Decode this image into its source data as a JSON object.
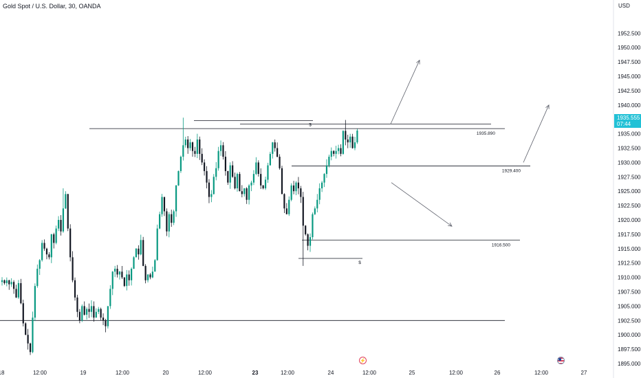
{
  "header": {
    "title": "Gold Spot / U.S. Dollar, 30, OANDA",
    "currency": "USD"
  },
  "price_tag": {
    "price": "1935.555",
    "countdown": "07:44",
    "color": "#22c1d6"
  },
  "colors": {
    "up": "#089981",
    "down": "#131722",
    "line": "#131722",
    "axis_text": "#131722",
    "drawing": "#5d606b"
  },
  "events": [
    {
      "icon": "flash-event-icon",
      "x": "23 12:00"
    },
    {
      "icon": "us-flag-icon",
      "x": "26 12:00"
    }
  ],
  "chart_data": {
    "type": "candlestick",
    "title": "Gold Spot / U.S. Dollar, 30, OANDA",
    "ylabel": "USD",
    "ylim": [
      1895,
      1955
    ],
    "y_ticks": [
      1895,
      1897.5,
      1900,
      1902.5,
      1905,
      1907.5,
      1910,
      1912.5,
      1915,
      1917.5,
      1920,
      1922.5,
      1925,
      1927.5,
      1930,
      1932.5,
      1935,
      1937.5,
      1940,
      1942.5,
      1945,
      1947.5,
      1950,
      1952.5
    ],
    "y_tick_labels": [
      "1895.000",
      "1897.500",
      "1900.000",
      "1902.500",
      "1905.000",
      "1907.500",
      "1910.000",
      "1912.500",
      "1915.000",
      "1917.500",
      "1920.000",
      "1922.500",
      "1925.000",
      "1927.500",
      "1930.000",
      "1932.500",
      "1935.000",
      "1937.500",
      "1940.000",
      "1942.500",
      "1945.000",
      "1947.500",
      "1950.000",
      "1952.500"
    ],
    "x_ticks": [
      {
        "label": "18",
        "bold": false
      },
      {
        "label": "12:00",
        "bold": false
      },
      {
        "label": "19",
        "bold": false
      },
      {
        "label": "12:00",
        "bold": false
      },
      {
        "label": "20",
        "bold": false
      },
      {
        "label": "12:00",
        "bold": false
      },
      {
        "label": "23",
        "bold": true
      },
      {
        "label": "12:00",
        "bold": false
      },
      {
        "label": "24",
        "bold": false
      },
      {
        "label": "12:00",
        "bold": false
      },
      {
        "label": "25",
        "bold": false
      },
      {
        "label": "12:00",
        "bold": false
      },
      {
        "label": "26",
        "bold": false
      },
      {
        "label": "12:00",
        "bold": false
      },
      {
        "label": "27",
        "bold": false
      }
    ],
    "ohlc_close": [
      1909.5,
      1909.0,
      1909.5,
      1908.8,
      1909.2,
      1908.0,
      1906.5,
      1909.0,
      1905.5,
      1902.0,
      1900.0,
      1898.5,
      1897.0,
      1903.0,
      1908.5,
      1911.5,
      1913.0,
      1916.0,
      1915.0,
      1914.0,
      1913.5,
      1917.5,
      1916.0,
      1918.5,
      1920.0,
      1918.0,
      1922.0,
      1924.5,
      1918.5,
      1913.5,
      1909.5,
      1906.5,
      1904.0,
      1902.5,
      1905.0,
      1903.5,
      1904.5,
      1904.0,
      1905.0,
      1903.0,
      1904.0,
      1904.5,
      1903.0,
      1902.5,
      1901.5,
      1905.0,
      1908.0,
      1911.0,
      1911.5,
      1910.5,
      1911.0,
      1910.0,
      1908.5,
      1910.5,
      1909.5,
      1911.5,
      1913.5,
      1915.0,
      1914.0,
      1916.5,
      1912.0,
      1909.5,
      1910.5,
      1910.0,
      1911.0,
      1913.0,
      1918.5,
      1921.0,
      1924.0,
      1921.5,
      1918.0,
      1921.0,
      1919.5,
      1921.5,
      1926.0,
      1928.5,
      1931.0,
      1933.0,
      1934.0,
      1932.5,
      1933.5,
      1932.0,
      1931.5,
      1934.0,
      1931.5,
      1930.0,
      1928.5,
      1926.5,
      1924.0,
      1924.5,
      1927.5,
      1929.0,
      1932.0,
      1933.0,
      1931.0,
      1928.5,
      1926.5,
      1929.5,
      1927.5,
      1925.5,
      1928.0,
      1925.0,
      1924.5,
      1925.5,
      1923.5,
      1926.0,
      1926.5,
      1928.0,
      1930.0,
      1928.0,
      1926.0,
      1925.5,
      1927.0,
      1929.5,
      1931.5,
      1933.5,
      1932.5,
      1931.0,
      1929.0,
      1924.5,
      1922.0,
      1921.0,
      1923.5,
      1926.0,
      1925.0,
      1926.5,
      1925.5,
      1924.0,
      1919.0,
      1917.5,
      1915.5,
      1917.0,
      1921.0,
      1922.0,
      1923.5,
      1925.5,
      1926.5,
      1928.0,
      1929.5,
      1931.0,
      1932.0,
      1931.5,
      1932.0,
      1932.5,
      1931.5,
      1935.5,
      1934.0,
      1933.5,
      1934.5,
      1932.5,
      1933.5,
      1935.555
    ],
    "levels": [
      {
        "price": 1935.89,
        "label": "1935.890"
      },
      {
        "price": 1929.4,
        "label": "1929.400"
      },
      {
        "price": 1916.5,
        "label": "1916.500"
      },
      {
        "price": 1902.5,
        "label": ""
      }
    ],
    "liquidity_marks": [
      {
        "price": 1937.3,
        "label": "$"
      },
      {
        "price": 1913.3,
        "label": "$"
      }
    ],
    "projection_arrows": [
      {
        "from_price": 1936.7,
        "to_price": 1947.8,
        "direction": "up"
      },
      {
        "from_price": 1930.0,
        "to_price": 1940.0,
        "direction": "up"
      },
      {
        "from_price": 1926.5,
        "to_price": 1918.9,
        "direction": "down"
      }
    ],
    "grid": false,
    "legend": "none"
  }
}
